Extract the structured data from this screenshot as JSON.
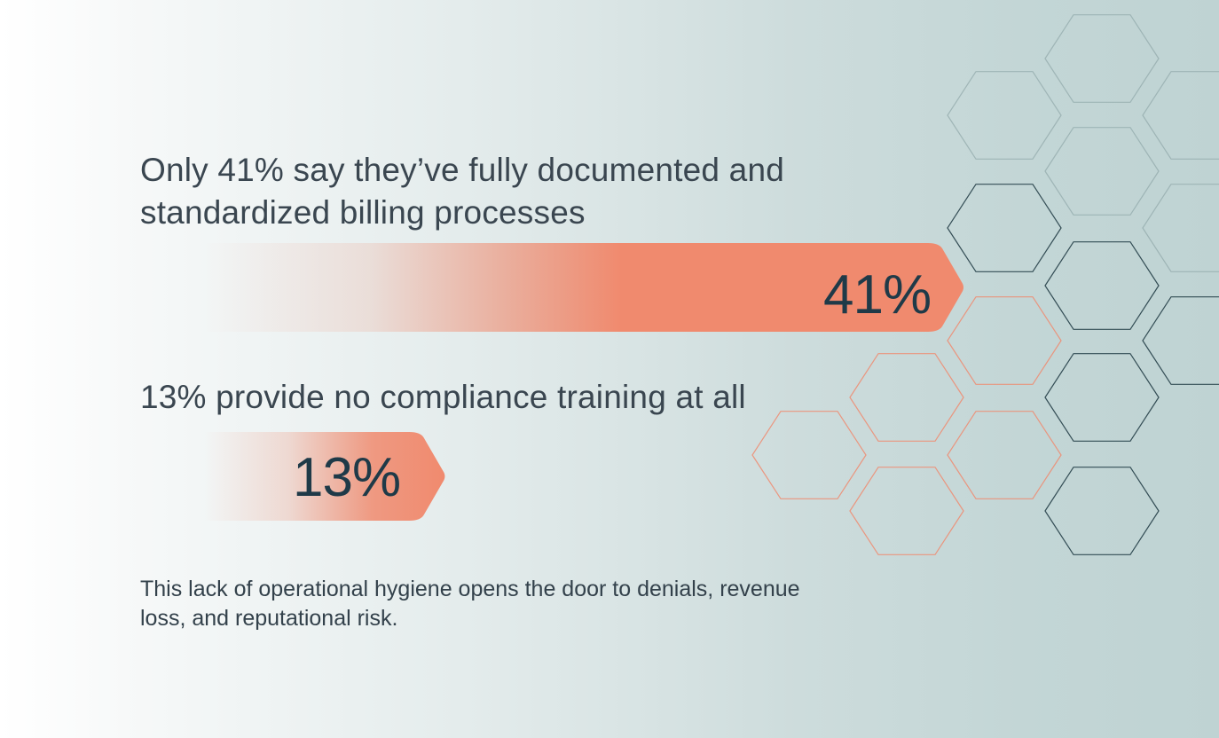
{
  "chart_data": {
    "type": "bar",
    "orientation": "horizontal",
    "unit": "%",
    "xlim": [
      0,
      100
    ],
    "categories": [
      "Only 41% say they’ve fully documented and standardized billing processes",
      "13% provide no compliance training at all"
    ],
    "values": [
      41,
      13
    ],
    "value_labels": [
      "41%",
      "13%"
    ],
    "bar_color": "#f08a6e",
    "grid": false
  },
  "footnote": "This lack of operational hygiene opens the door to denials, revenue loss, and reputational risk.",
  "colors": {
    "bar": "#f08a6e",
    "hex_outline_dark": "#233e47",
    "hex_outline_orange": "#f08a6e",
    "hex_outline_light": "#8fa7a8"
  }
}
